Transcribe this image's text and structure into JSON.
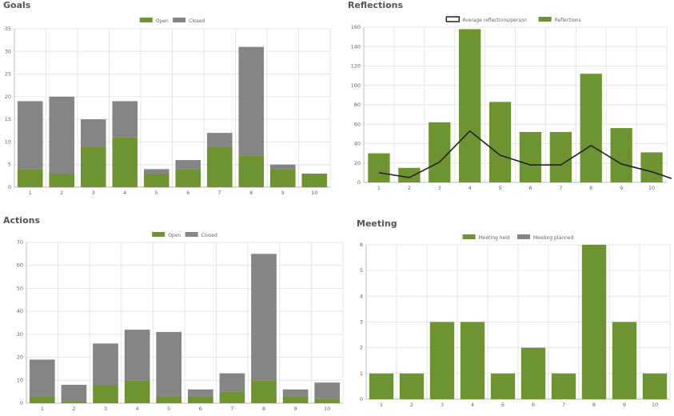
{
  "colors": {
    "green": "#6e9331",
    "gray": "#858585",
    "line": "#222222",
    "grid": "#e6e6e6",
    "axis": "#bbbbbb",
    "tick_text": "#666666",
    "title": "#555555"
  },
  "chart_data": [
    {
      "id": "goals",
      "type": "bar",
      "stacked": true,
      "title": "Goals",
      "categories": [
        "1",
        "2",
        "3",
        "4",
        "5",
        "6",
        "7",
        "8",
        "9",
        "10"
      ],
      "series": [
        {
          "name": "Open",
          "color": "#6e9331",
          "values": [
            4,
            3,
            9,
            11,
            3,
            4,
            9,
            7,
            4,
            3
          ]
        },
        {
          "name": "Closed",
          "color": "#858585",
          "values": [
            15,
            17,
            6,
            8,
            1,
            2,
            3,
            24,
            1,
            0
          ]
        }
      ],
      "ylim": [
        0,
        35
      ],
      "yticks": [
        0,
        5,
        10,
        15,
        20,
        25,
        30,
        35
      ],
      "grid": true,
      "legend_position": "top-center"
    },
    {
      "id": "reflections",
      "type": "bar",
      "stacked": false,
      "title": "Reflections",
      "categories": [
        "1",
        "2",
        "3",
        "4",
        "5",
        "6",
        "7",
        "8",
        "9",
        "10"
      ],
      "series": [
        {
          "name": "Reflections",
          "kind": "bar",
          "color": "#6e9331",
          "values": [
            30,
            15,
            62,
            158,
            83,
            52,
            52,
            112,
            56,
            31
          ]
        },
        {
          "name": "Average reflections/person",
          "kind": "line",
          "color": "#222222",
          "values": [
            10,
            5,
            21,
            53,
            28,
            18,
            18,
            38,
            19,
            11
          ],
          "trailing_value": 4
        }
      ],
      "legend_order": [
        "Average reflections/person",
        "Reflections"
      ],
      "ylim": [
        0,
        160
      ],
      "yticks": [
        0,
        20,
        40,
        60,
        80,
        100,
        120,
        140,
        160
      ],
      "grid": true,
      "legend_position": "top-center"
    },
    {
      "id": "actions",
      "type": "bar",
      "stacked": true,
      "title": "Actions",
      "categories": [
        "1",
        "2",
        "3",
        "4",
        "5",
        "6",
        "7",
        "8",
        "9",
        "10"
      ],
      "series": [
        {
          "name": "Open",
          "color": "#6e9331",
          "values": [
            3,
            1,
            8,
            10,
            3,
            3,
            5,
            10,
            3,
            2
          ]
        },
        {
          "name": "Closed",
          "color": "#858585",
          "values": [
            16,
            7,
            18,
            22,
            28,
            3,
            8,
            55,
            3,
            7
          ]
        }
      ],
      "ylim": [
        0,
        70
      ],
      "yticks": [
        0,
        10,
        20,
        30,
        40,
        50,
        60,
        70
      ],
      "grid": true,
      "legend_position": "top-center"
    },
    {
      "id": "meeting",
      "type": "bar",
      "stacked": true,
      "title": "Meeting",
      "categories": [
        "1",
        "2",
        "3",
        "4",
        "5",
        "6",
        "7",
        "8",
        "9",
        "10"
      ],
      "series": [
        {
          "name": "Meeting held",
          "color": "#6e9331",
          "values": [
            1,
            1,
            3,
            3,
            1,
            2,
            1,
            6,
            3,
            1
          ]
        },
        {
          "name": "Meeting planned",
          "color": "#858585",
          "values": [
            0,
            0,
            0,
            0,
            0,
            0,
            0,
            0,
            0,
            0
          ]
        }
      ],
      "ylim": [
        0,
        6
      ],
      "yticks": [
        0,
        1,
        2,
        3,
        4,
        5,
        6
      ],
      "grid": true,
      "legend_position": "top-center"
    }
  ]
}
